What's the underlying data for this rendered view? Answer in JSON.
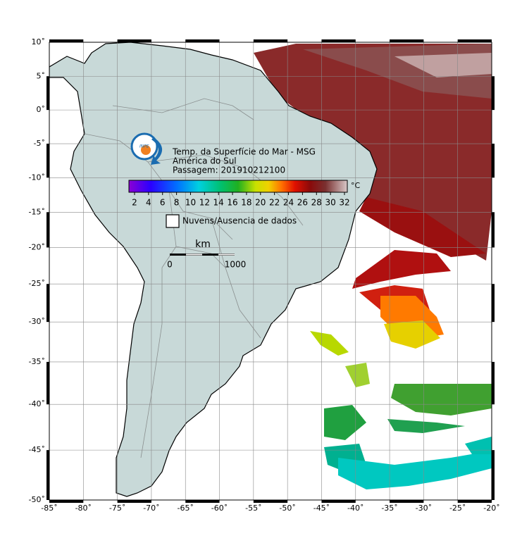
{
  "map": {
    "title": [
      "Temp. da Superfície do Mar - MSG",
      "América do Sul",
      "Passagem: 201910212100"
    ],
    "lon_range": [
      -85,
      -20
    ],
    "lat_range": [
      -50,
      10
    ],
    "lon_ticks": [
      {
        "value": -85,
        "label": "-85˚"
      },
      {
        "value": -80,
        "label": "-80˚"
      },
      {
        "value": -75,
        "label": "-75˚"
      },
      {
        "value": -70,
        "label": "-70˚"
      },
      {
        "value": -65,
        "label": "-65˚"
      },
      {
        "value": -60,
        "label": "-60˚"
      },
      {
        "value": -55,
        "label": "-55˚"
      },
      {
        "value": -50,
        "label": "-50˚"
      },
      {
        "value": -45,
        "label": "-45˚"
      },
      {
        "value": -40,
        "label": "-40˚"
      },
      {
        "value": -35,
        "label": "-35˚"
      },
      {
        "value": -30,
        "label": "-30˚"
      },
      {
        "value": -25,
        "label": "-25˚"
      },
      {
        "value": -20,
        "label": "-20˚"
      }
    ],
    "lat_ticks": [
      {
        "value": 10,
        "label": "10˚"
      },
      {
        "value": 5,
        "label": "5˚"
      },
      {
        "value": 0,
        "label": "0˚"
      },
      {
        "value": -5,
        "label": "-5˚"
      },
      {
        "value": -10,
        "label": "-10˚"
      },
      {
        "value": -15,
        "label": "-15˚"
      },
      {
        "value": -20,
        "label": "-20˚"
      },
      {
        "value": -25,
        "label": "-25˚"
      },
      {
        "value": -30,
        "label": "-30˚"
      },
      {
        "value": -35,
        "label": "-35˚"
      },
      {
        "value": -40,
        "label": "-40˚"
      },
      {
        "value": -45,
        "label": "-45˚"
      },
      {
        "value": -50,
        "label": "-50˚"
      }
    ],
    "colorbar": {
      "unit": "°C",
      "ticks": [
        2,
        4,
        6,
        8,
        10,
        12,
        14,
        16,
        18,
        20,
        22,
        24,
        26,
        28,
        30,
        32
      ]
    },
    "legend": "Nuvens/Ausencia de dados",
    "scale": {
      "unit": "km",
      "labels": [
        "0",
        "1000"
      ]
    }
  }
}
